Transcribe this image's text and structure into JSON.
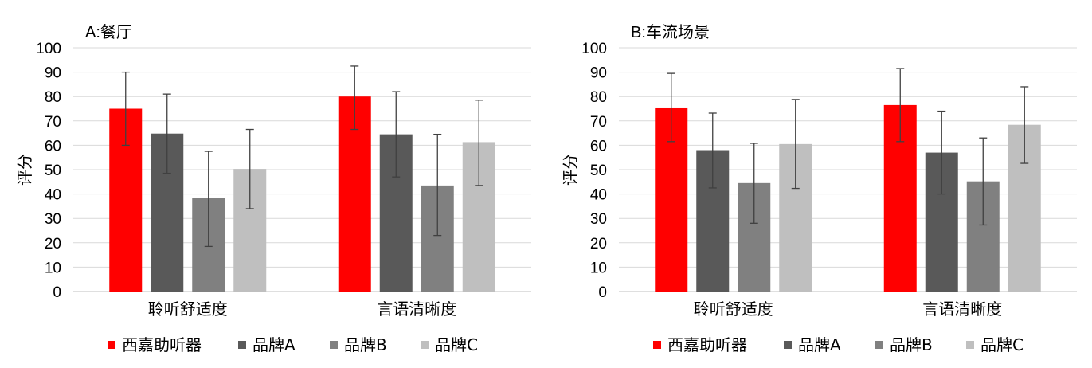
{
  "chart_data": [
    {
      "type": "bar",
      "title": "A:餐厅",
      "ylabel": "评分",
      "ylim": [
        0,
        100
      ],
      "yticks": [
        0,
        10,
        20,
        30,
        40,
        50,
        60,
        70,
        80,
        90,
        100
      ],
      "categories": [
        "聆听舒适度",
        "言语清晰度"
      ],
      "grid": true,
      "legend_position": "bottom",
      "series": [
        {
          "name": "西嘉助听器",
          "color": "#ff0000",
          "values": [
            75,
            80
          ],
          "err_low": [
            60,
            66.5
          ],
          "err_high": [
            90,
            92.5
          ]
        },
        {
          "name": "品牌A",
          "color": "#595959",
          "values": [
            64.8,
            64.5
          ],
          "err_low": [
            48.5,
            47
          ],
          "err_high": [
            81,
            82
          ]
        },
        {
          "name": "品牌B",
          "color": "#808080",
          "values": [
            38.3,
            43.5
          ],
          "err_low": [
            18.5,
            23
          ],
          "err_high": [
            57.5,
            64.5
          ]
        },
        {
          "name": "品牌C",
          "color": "#bfbfbf",
          "values": [
            50.3,
            61.3
          ],
          "err_low": [
            34,
            43.5
          ],
          "err_high": [
            66.5,
            78.5
          ]
        }
      ]
    },
    {
      "type": "bar",
      "title": "B:车流场景",
      "ylabel": "评分",
      "ylim": [
        0,
        100
      ],
      "yticks": [
        0,
        10,
        20,
        30,
        40,
        50,
        60,
        70,
        80,
        90,
        100
      ],
      "categories": [
        "聆听舒适度",
        "言语清晰度"
      ],
      "grid": true,
      "legend_position": "bottom",
      "series": [
        {
          "name": "西嘉助听器",
          "color": "#ff0000",
          "values": [
            75.5,
            76.5
          ],
          "err_low": [
            61.5,
            61.5
          ],
          "err_high": [
            89.5,
            91.5
          ]
        },
        {
          "name": "品牌A",
          "color": "#595959",
          "values": [
            58,
            57
          ],
          "err_low": [
            42.5,
            40
          ],
          "err_high": [
            73.2,
            74
          ]
        },
        {
          "name": "品牌B",
          "color": "#808080",
          "values": [
            44.5,
            45.2
          ],
          "err_low": [
            28,
            27.3
          ],
          "err_high": [
            60.8,
            63
          ]
        },
        {
          "name": "品牌C",
          "color": "#bfbfbf",
          "values": [
            60.5,
            68.4
          ],
          "err_low": [
            42.3,
            52.6
          ],
          "err_high": [
            78.8,
            84
          ]
        }
      ]
    }
  ]
}
